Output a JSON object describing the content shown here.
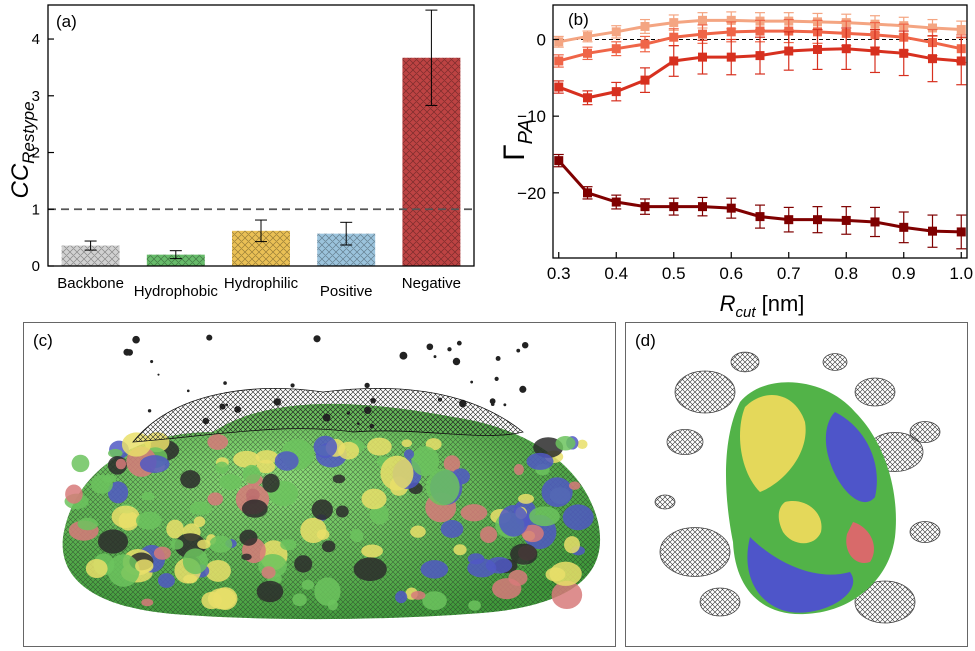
{
  "chart_data": [
    {
      "panel": "(a)",
      "type": "bar",
      "ylabel": "CC",
      "ylabel_sub": "Restype",
      "ylim": [
        0,
        4.6
      ],
      "yticks": [
        0,
        1,
        2,
        3,
        4
      ],
      "reference_line": 1,
      "categories": [
        "Backbone",
        "Hydrophobic",
        "Hydrophilic",
        "Positive",
        "Negative"
      ],
      "values": [
        0.36,
        0.2,
        0.62,
        0.57,
        3.67
      ],
      "errors": [
        0.08,
        0.07,
        0.19,
        0.2,
        0.84
      ],
      "colors": [
        "#c9c9c9",
        "#4caf50",
        "#e6b537",
        "#8ab8d6",
        "#b22222"
      ],
      "hatch": "crosshatch",
      "grid": false
    },
    {
      "panel": "(b)",
      "type": "line",
      "xlabel": "R",
      "xlabel_sub": "cut",
      "xlabel_unit": "[nm]",
      "ylabel": "Γ",
      "ylabel_sub": "PA",
      "xlim": [
        0.29,
        1.01
      ],
      "ylim": [
        -28.5,
        4.5
      ],
      "xticks": [
        0.3,
        0.4,
        0.5,
        0.6,
        0.7,
        0.8,
        0.9,
        1.0
      ],
      "xticklabels": [
        "0.3",
        "0.4",
        "0.5",
        "0.6",
        "0.7",
        "0.8",
        "0.9",
        "1.0"
      ],
      "yticks": [
        0,
        -10,
        -20
      ],
      "yticklabels": [
        "0",
        "−10",
        "−20"
      ],
      "reference_line": 0,
      "marker": "square",
      "grid": false,
      "x": [
        0.3,
        0.35,
        0.4,
        0.45,
        0.5,
        0.55,
        0.6,
        0.65,
        0.7,
        0.75,
        0.8,
        0.85,
        0.9,
        0.95,
        1.0
      ],
      "series": [
        {
          "color": "#f4a582",
          "values": [
            -0.3,
            0.4,
            1.0,
            1.7,
            2.2,
            2.5,
            2.5,
            2.4,
            2.4,
            2.3,
            2.2,
            2.0,
            1.8,
            1.5,
            1.3
          ],
          "errors": [
            0.7,
            0.7,
            0.8,
            0.9,
            1.0,
            1.0,
            1.1,
            1.1,
            1.1,
            1.1,
            1.1,
            1.1,
            1.1,
            1.1,
            1.1
          ]
        },
        {
          "color": "#ef6548",
          "values": [
            -2.8,
            -1.8,
            -1.2,
            -0.6,
            0.3,
            0.7,
            1.0,
            1.1,
            1.1,
            1.0,
            0.8,
            0.6,
            0.3,
            -0.4,
            -1.2
          ],
          "errors": [
            0.8,
            0.8,
            0.9,
            1.0,
            1.1,
            1.2,
            1.3,
            1.4,
            1.5,
            1.5,
            1.6,
            1.6,
            1.7,
            1.7,
            1.8
          ]
        },
        {
          "color": "#d7301f",
          "values": [
            -6.2,
            -7.6,
            -6.8,
            -5.3,
            -2.8,
            -2.3,
            -2.3,
            -2.1,
            -1.5,
            -1.3,
            -1.2,
            -1.5,
            -1.8,
            -2.5,
            -2.8
          ],
          "errors": [
            0.8,
            0.9,
            1.2,
            1.6,
            2.0,
            2.2,
            2.3,
            2.4,
            2.5,
            2.6,
            2.7,
            2.8,
            2.9,
            3.0,
            3.1
          ]
        },
        {
          "color": "#7f0000",
          "values": [
            -15.8,
            -20.0,
            -21.2,
            -21.8,
            -21.8,
            -21.8,
            -22.0,
            -23.1,
            -23.5,
            -23.5,
            -23.6,
            -23.8,
            -24.5,
            -25.0,
            -25.1
          ],
          "errors": [
            0.8,
            0.8,
            0.9,
            1.0,
            1.1,
            1.2,
            1.3,
            1.5,
            1.6,
            1.7,
            1.8,
            1.9,
            2.0,
            2.1,
            2.2
          ]
        }
      ]
    }
  ],
  "panels": {
    "c": {
      "label": "(c)"
    },
    "d": {
      "label": "(d)"
    }
  }
}
